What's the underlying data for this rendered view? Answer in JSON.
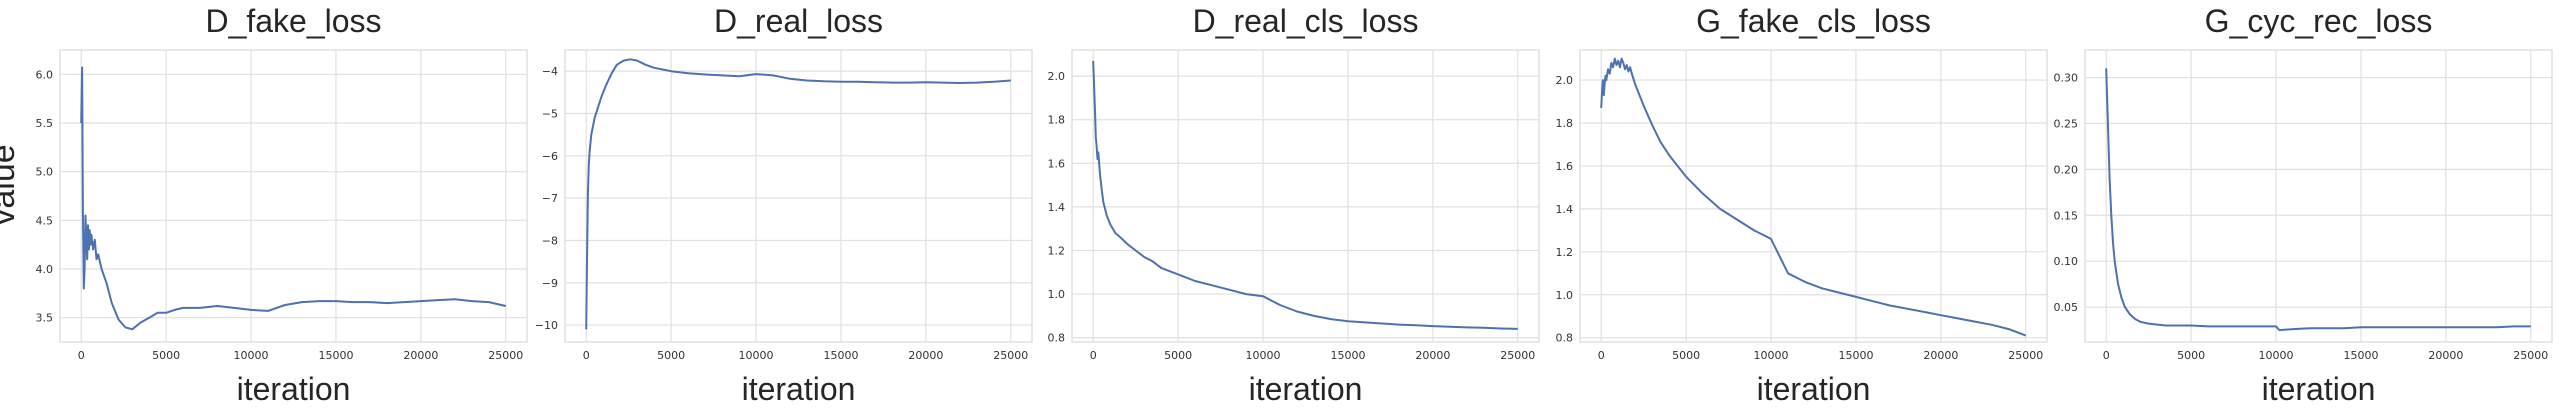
{
  "figure": {
    "shared_ylabel": "value"
  },
  "chart_data": [
    {
      "type": "line",
      "title": "D_fake_loss",
      "xlabel": "iteration",
      "ylabel": "value",
      "xlim": [
        -1250,
        26250
      ],
      "ylim": [
        3.25,
        6.25
      ],
      "xticks": [
        0,
        5000,
        10000,
        15000,
        20000,
        25000
      ],
      "yticks": [
        3.5,
        4.0,
        4.5,
        5.0,
        5.5,
        6.0
      ],
      "ytick_labels": [
        "3.5",
        "4.0",
        "4.5",
        "5.0",
        "5.5",
        "6.0"
      ],
      "grid": true,
      "color": "#4c72b0",
      "series": [
        {
          "x": [
            0,
            50,
            100,
            150,
            200,
            250,
            300,
            350,
            400,
            450,
            500,
            550,
            600,
            700,
            800,
            900,
            1000,
            1200,
            1500,
            1800,
            2200,
            2600,
            3000,
            3500,
            4000,
            4500,
            5000,
            5500,
            6000,
            7000,
            8000,
            9000,
            10000,
            11000,
            12000,
            13000,
            14000,
            15000,
            16000,
            17000,
            18000,
            19000,
            20000,
            21000,
            22000,
            23000,
            24000,
            25000
          ],
          "y": [
            5.5,
            6.07,
            4.6,
            3.8,
            4.0,
            4.55,
            4.3,
            4.1,
            4.45,
            4.2,
            4.4,
            4.25,
            4.35,
            4.2,
            4.3,
            4.1,
            4.15,
            4.0,
            3.85,
            3.65,
            3.48,
            3.4,
            3.38,
            3.45,
            3.5,
            3.55,
            3.55,
            3.58,
            3.6,
            3.6,
            3.62,
            3.6,
            3.58,
            3.57,
            3.63,
            3.66,
            3.67,
            3.67,
            3.66,
            3.66,
            3.65,
            3.66,
            3.67,
            3.68,
            3.69,
            3.67,
            3.66,
            3.62
          ]
        }
      ]
    },
    {
      "type": "line",
      "title": "D_real_loss",
      "xlabel": "iteration",
      "ylabel": "",
      "xlim": [
        -1250,
        26250
      ],
      "ylim": [
        -10.4,
        -3.5
      ],
      "xticks": [
        0,
        5000,
        10000,
        15000,
        20000,
        25000
      ],
      "yticks": [
        -10,
        -9,
        -8,
        -7,
        -6,
        -5,
        -4
      ],
      "ytick_labels": [
        "−10",
        "−9",
        "−8",
        "−7",
        "−6",
        "−5",
        "−4"
      ],
      "grid": true,
      "color": "#4c72b0",
      "series": [
        {
          "x": [
            0,
            50,
            100,
            150,
            200,
            300,
            400,
            500,
            700,
            900,
            1200,
            1500,
            1800,
            2200,
            2600,
            3000,
            3500,
            4000,
            5000,
            6000,
            7000,
            8000,
            9000,
            10000,
            11000,
            12000,
            13000,
            14000,
            15000,
            16000,
            17000,
            18000,
            19000,
            20000,
            21000,
            22000,
            23000,
            24000,
            25000
          ],
          "y": [
            -10.1,
            -8.3,
            -6.9,
            -6.2,
            -5.9,
            -5.5,
            -5.3,
            -5.1,
            -4.85,
            -4.6,
            -4.3,
            -4.05,
            -3.85,
            -3.75,
            -3.72,
            -3.75,
            -3.85,
            -3.92,
            -4.0,
            -4.05,
            -4.08,
            -4.1,
            -4.12,
            -4.07,
            -4.1,
            -4.18,
            -4.22,
            -4.24,
            -4.25,
            -4.25,
            -4.26,
            -4.27,
            -4.27,
            -4.26,
            -4.27,
            -4.28,
            -4.27,
            -4.25,
            -4.22
          ]
        }
      ]
    },
    {
      "type": "line",
      "title": "D_real_cls_loss",
      "xlabel": "iteration",
      "ylabel": "",
      "xlim": [
        -1250,
        26250
      ],
      "ylim": [
        0.78,
        2.12
      ],
      "xticks": [
        0,
        5000,
        10000,
        15000,
        20000,
        25000
      ],
      "yticks": [
        0.8,
        1.0,
        1.2,
        1.4,
        1.6,
        1.8,
        2.0
      ],
      "ytick_labels": [
        "0.8",
        "1.0",
        "1.2",
        "1.4",
        "1.6",
        "1.8",
        "2.0"
      ],
      "grid": true,
      "color": "#4c72b0",
      "series": [
        {
          "x": [
            0,
            50,
            100,
            150,
            200,
            250,
            300,
            400,
            500,
            600,
            800,
            1000,
            1300,
            1600,
            2000,
            2500,
            3000,
            3500,
            4000,
            5000,
            6000,
            7000,
            8000,
            9000,
            10000,
            11000,
            12000,
            13000,
            14000,
            15000,
            16000,
            17000,
            18000,
            19000,
            20000,
            21000,
            22000,
            23000,
            24000,
            25000
          ],
          "y": [
            2.07,
            1.95,
            1.85,
            1.72,
            1.68,
            1.62,
            1.65,
            1.55,
            1.48,
            1.42,
            1.36,
            1.32,
            1.28,
            1.26,
            1.23,
            1.2,
            1.17,
            1.15,
            1.12,
            1.09,
            1.06,
            1.04,
            1.02,
            1.0,
            0.99,
            0.95,
            0.92,
            0.9,
            0.885,
            0.875,
            0.87,
            0.865,
            0.86,
            0.857,
            0.853,
            0.85,
            0.847,
            0.845,
            0.842,
            0.84
          ]
        }
      ]
    },
    {
      "type": "line",
      "title": "G_fake_cls_loss",
      "xlabel": "iteration",
      "ylabel": "",
      "xlim": [
        -1250,
        26250
      ],
      "ylim": [
        0.78,
        2.14
      ],
      "xticks": [
        0,
        5000,
        10000,
        15000,
        20000,
        25000
      ],
      "yticks": [
        0.8,
        1.0,
        1.2,
        1.4,
        1.6,
        1.8,
        2.0
      ],
      "ytick_labels": [
        "0.8",
        "1.0",
        "1.2",
        "1.4",
        "1.6",
        "1.8",
        "2.0"
      ],
      "grid": true,
      "color": "#4c72b0",
      "series": [
        {
          "x": [
            0,
            50,
            100,
            150,
            200,
            250,
            300,
            400,
            500,
            600,
            700,
            800,
            900,
            1000,
            1100,
            1200,
            1300,
            1400,
            1500,
            1600,
            1700,
            1800,
            2000,
            2500,
            3000,
            3500,
            4000,
            5000,
            6000,
            7000,
            8000,
            9000,
            10000,
            10500,
            11000,
            12000,
            13000,
            14000,
            15000,
            16000,
            17000,
            18000,
            19000,
            20000,
            21000,
            22000,
            23000,
            24000,
            25000
          ],
          "y": [
            1.87,
            1.95,
            2.0,
            1.93,
            1.98,
            2.02,
            2.0,
            2.05,
            2.03,
            2.08,
            2.06,
            2.1,
            2.07,
            2.09,
            2.06,
            2.1,
            2.08,
            2.05,
            2.07,
            2.04,
            2.06,
            2.03,
            1.98,
            1.88,
            1.79,
            1.71,
            1.65,
            1.55,
            1.47,
            1.4,
            1.35,
            1.3,
            1.26,
            1.18,
            1.1,
            1.06,
            1.03,
            1.01,
            0.99,
            0.97,
            0.95,
            0.935,
            0.92,
            0.905,
            0.89,
            0.875,
            0.86,
            0.84,
            0.81
          ]
        }
      ]
    },
    {
      "type": "line",
      "title": "G_cyc_rec_loss",
      "xlabel": "iteration",
      "ylabel": "",
      "xlim": [
        -1250,
        26250
      ],
      "ylim": [
        0.012,
        0.33
      ],
      "xticks": [
        0,
        5000,
        10000,
        15000,
        20000,
        25000
      ],
      "yticks": [
        0.05,
        0.1,
        0.15,
        0.2,
        0.25,
        0.3
      ],
      "ytick_labels": [
        "0.05",
        "0.10",
        "0.15",
        "0.20",
        "0.25",
        "0.30"
      ],
      "grid": true,
      "color": "#4c72b0",
      "series": [
        {
          "x": [
            0,
            100,
            200,
            300,
            400,
            500,
            700,
            900,
            1100,
            1400,
            1700,
            2000,
            2500,
            3000,
            3500,
            4000,
            5000,
            6000,
            7000,
            8000,
            9000,
            10000,
            10200,
            11000,
            12000,
            13000,
            14000,
            15000,
            16000,
            17000,
            18000,
            19000,
            20000,
            21000,
            22000,
            23000,
            24000,
            25000
          ],
          "y": [
            0.31,
            0.25,
            0.19,
            0.15,
            0.12,
            0.1,
            0.075,
            0.06,
            0.05,
            0.042,
            0.037,
            0.034,
            0.032,
            0.031,
            0.03,
            0.03,
            0.03,
            0.029,
            0.029,
            0.029,
            0.029,
            0.029,
            0.025,
            0.026,
            0.027,
            0.027,
            0.027,
            0.028,
            0.028,
            0.028,
            0.028,
            0.028,
            0.028,
            0.028,
            0.028,
            0.028,
            0.029,
            0.029
          ]
        }
      ]
    }
  ]
}
